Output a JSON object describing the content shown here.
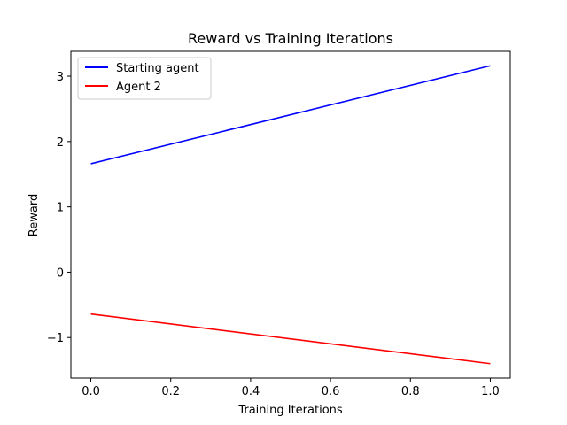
{
  "chart_data": {
    "type": "line",
    "title": "Reward vs Training Iterations",
    "xlabel": "Training Iterations",
    "ylabel": "Reward",
    "xlim": [
      -0.05,
      1.05
    ],
    "ylim": [
      -1.62,
      3.38
    ],
    "x_ticks": [
      0.0,
      0.2,
      0.4,
      0.6,
      0.8,
      1.0
    ],
    "x_tick_labels": [
      "0.0",
      "0.2",
      "0.4",
      "0.6",
      "0.8",
      "1.0"
    ],
    "y_ticks": [
      -1,
      0,
      1,
      2,
      3
    ],
    "y_tick_labels": [
      "−1",
      "0",
      "1",
      "2",
      "3"
    ],
    "grid": false,
    "legend_position": "top-left",
    "series": [
      {
        "name": "Starting agent",
        "color": "#0000ff",
        "x": [
          0.0,
          1.0
        ],
        "y": [
          1.66,
          3.16
        ]
      },
      {
        "name": "Agent 2",
        "color": "#ff0000",
        "x": [
          0.0,
          1.0
        ],
        "y": [
          -0.64,
          -1.4
        ]
      }
    ]
  }
}
